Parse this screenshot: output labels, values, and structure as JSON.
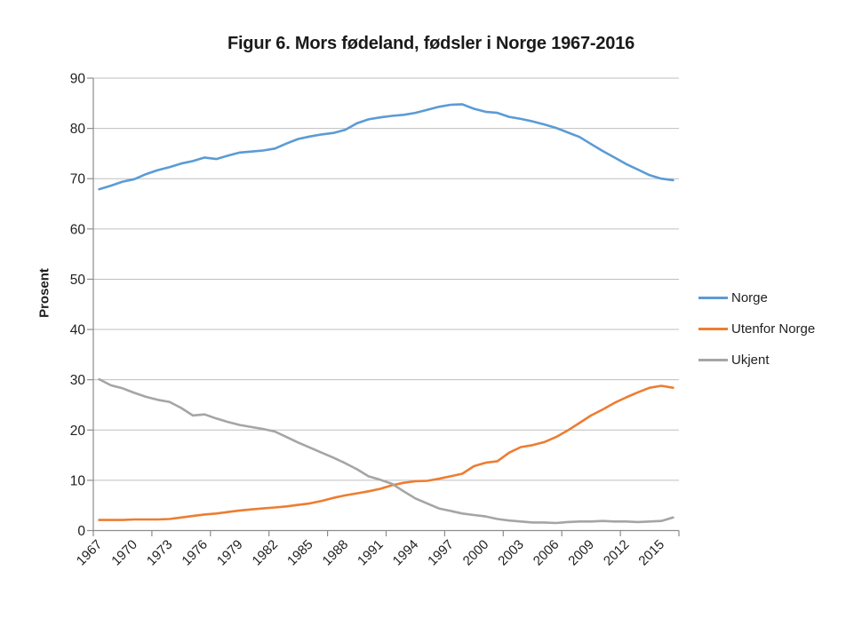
{
  "figure": {
    "background": "#ffffff"
  },
  "chart_data": {
    "type": "line",
    "title": "Figur 6. Mors fødeland, fødsler i Norge 1967-2016",
    "xlabel": "",
    "ylabel": "Prosent",
    "ylim": [
      0,
      90
    ],
    "ytick_interval": 10,
    "y_ticks": [
      0,
      10,
      20,
      30,
      40,
      50,
      60,
      70,
      80,
      90
    ],
    "grid": true,
    "legend_position": "right",
    "colors": {
      "axis": "#8c8c8c",
      "gridline": "#bfbfbf",
      "tick_text": "#1f1f1f"
    },
    "x": [
      1967,
      1968,
      1969,
      1970,
      1971,
      1972,
      1973,
      1974,
      1975,
      1976,
      1977,
      1978,
      1979,
      1980,
      1981,
      1982,
      1983,
      1984,
      1985,
      1986,
      1987,
      1988,
      1989,
      1990,
      1991,
      1992,
      1993,
      1994,
      1995,
      1996,
      1997,
      1998,
      1999,
      2000,
      2001,
      2002,
      2003,
      2004,
      2005,
      2006,
      2007,
      2008,
      2009,
      2010,
      2011,
      2012,
      2013,
      2014,
      2015,
      2016
    ],
    "x_tick_labels": [
      1967,
      1970,
      1973,
      1976,
      1979,
      1982,
      1985,
      1988,
      1991,
      1994,
      1997,
      2000,
      2003,
      2006,
      2009,
      2012,
      2015
    ],
    "series": [
      {
        "name": "Norge",
        "color": "#5b9bd5",
        "values": [
          67.9,
          68.6,
          69.4,
          69.9,
          70.9,
          71.7,
          72.3,
          73.0,
          73.5,
          74.2,
          73.9,
          74.6,
          75.2,
          75.4,
          75.6,
          76.0,
          77.0,
          77.9,
          78.4,
          78.8,
          79.1,
          79.7,
          81.0,
          81.8,
          82.2,
          82.5,
          82.7,
          83.1,
          83.7,
          84.3,
          84.7,
          84.8,
          83.9,
          83.3,
          83.1,
          82.3,
          81.9,
          81.4,
          80.8,
          80.1,
          79.2,
          78.3,
          76.9,
          75.5,
          74.2,
          72.9,
          71.8,
          70.7,
          70.0,
          69.7
        ]
      },
      {
        "name": "Utenfor Norge",
        "color": "#ed7d31",
        "values": [
          2.1,
          2.1,
          2.1,
          2.2,
          2.2,
          2.2,
          2.3,
          2.6,
          2.9,
          3.2,
          3.4,
          3.7,
          4.0,
          4.2,
          4.4,
          4.6,
          4.8,
          5.1,
          5.4,
          5.9,
          6.5,
          7.0,
          7.4,
          7.8,
          8.3,
          9.0,
          9.5,
          9.8,
          9.9,
          10.3,
          10.8,
          11.3,
          12.8,
          13.5,
          13.8,
          15.5,
          16.6,
          17.0,
          17.6,
          18.6,
          19.9,
          21.4,
          22.9,
          24.1,
          25.4,
          26.5,
          27.5,
          28.4,
          28.8,
          28.4
        ]
      },
      {
        "name": "Ukjent",
        "color": "#a5a5a5",
        "values": [
          30.1,
          28.9,
          28.3,
          27.4,
          26.6,
          26.0,
          25.6,
          24.4,
          22.9,
          23.1,
          22.3,
          21.6,
          21.0,
          20.6,
          20.2,
          19.7,
          18.6,
          17.5,
          16.5,
          15.5,
          14.5,
          13.4,
          12.2,
          10.8,
          10.1,
          9.3,
          7.8,
          6.4,
          5.4,
          4.4,
          3.9,
          3.4,
          3.1,
          2.8,
          2.3,
          2.0,
          1.8,
          1.6,
          1.6,
          1.5,
          1.7,
          1.8,
          1.8,
          1.9,
          1.8,
          1.8,
          1.7,
          1.8,
          1.9,
          2.6
        ]
      }
    ]
  }
}
